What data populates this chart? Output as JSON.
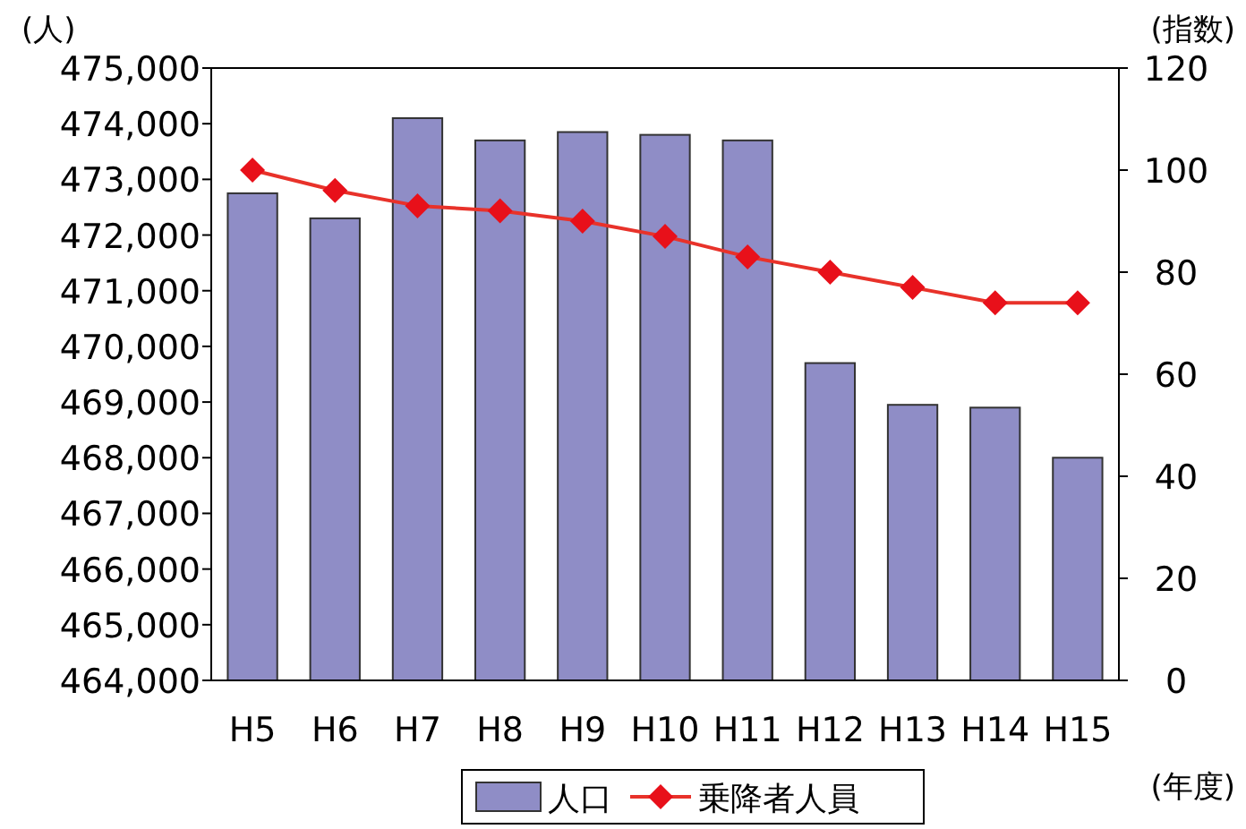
{
  "chart_data": {
    "type": "bar",
    "categories": [
      "H5",
      "H6",
      "H7",
      "H8",
      "H9",
      "H10",
      "H11",
      "H12",
      "H13",
      "H14",
      "H15"
    ],
    "ylabel": "(人)",
    "y2label": "(指数)",
    "xlabel": "(年度)",
    "series": [
      {
        "name": "人口",
        "color": "#8f8dc6",
        "values": [
          472750,
          472300,
          474100,
          473700,
          473850,
          473800,
          473700,
          469700,
          468950,
          468900,
          468000
        ]
      },
      {
        "name": "乗降者人員",
        "type": "line",
        "axis": "y2",
        "color": "#e8322a",
        "marker": "diamond",
        "values": [
          100,
          96,
          93,
          92,
          90,
          87,
          83,
          80,
          77,
          74,
          74
        ]
      }
    ],
    "ylim": [
      464000,
      475000
    ],
    "yticks": [
      {
        "value": 464000,
        "label": "464,000"
      },
      {
        "value": 465000,
        "label": "465,000"
      },
      {
        "value": 466000,
        "label": "466,000"
      },
      {
        "value": 467000,
        "label": "467,000"
      },
      {
        "value": 468000,
        "label": "468,000"
      },
      {
        "value": 469000,
        "label": "469,000"
      },
      {
        "value": 470000,
        "label": "470,000"
      },
      {
        "value": 471000,
        "label": "471,000"
      },
      {
        "value": 472000,
        "label": "472,000"
      },
      {
        "value": 473000,
        "label": "473,000"
      },
      {
        "value": 474000,
        "label": "474,000"
      },
      {
        "value": 475000,
        "label": "475,000"
      }
    ],
    "y2lim": [
      0,
      120
    ],
    "y2ticks": [
      0,
      20,
      40,
      60,
      80,
      100,
      120
    ],
    "grid": false,
    "legend": "bottom"
  }
}
